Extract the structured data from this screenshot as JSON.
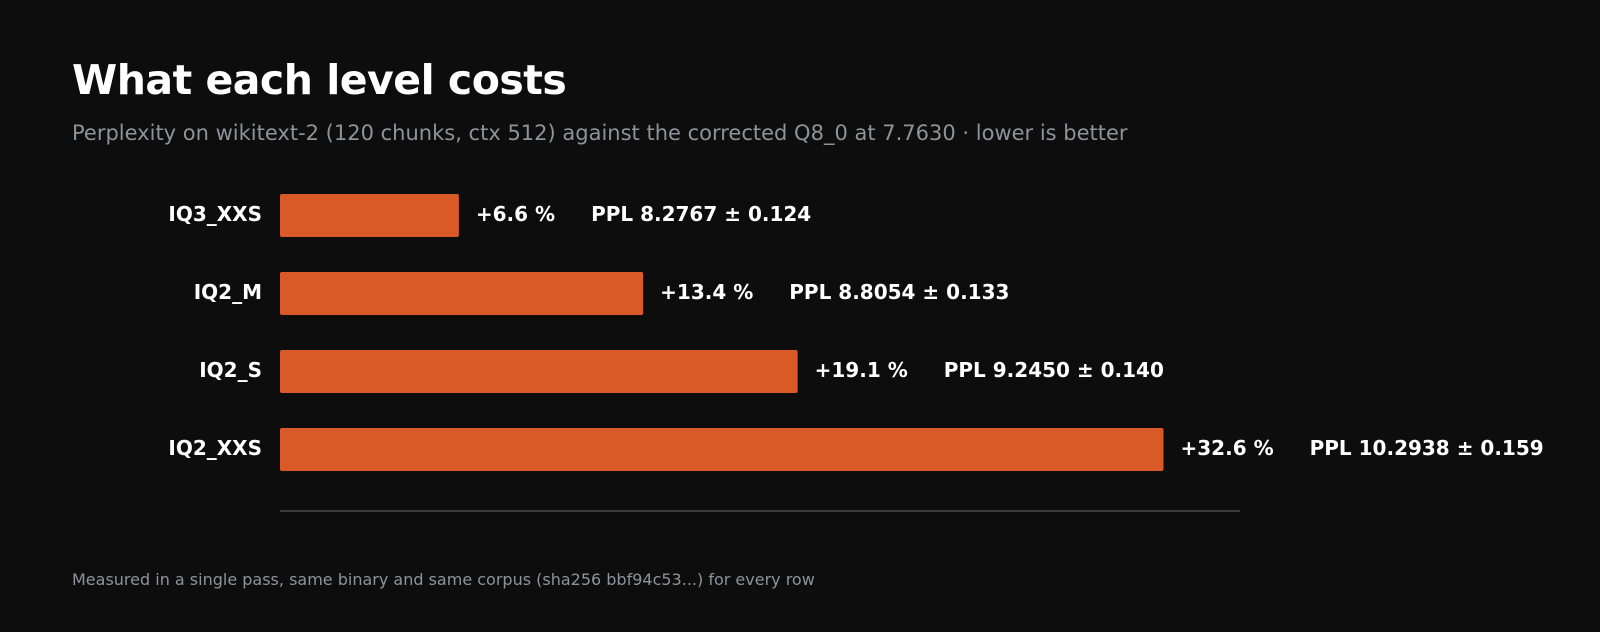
{
  "title": "What each level costs",
  "subtitle": "Perplexity on wikitext-2 (120 chunks, ctx 512) against the corrected Q8_0 at 7.7630  ·  lower is better",
  "footnote": "Measured in a single pass, same binary and same corpus (sha256 bbf94c53...) for every row",
  "colors": {
    "background": "#0d0d0d",
    "bar": "#da5a27",
    "axis": "#3a3a3a",
    "muted_text": "#8b949c"
  },
  "chart_data": {
    "type": "bar",
    "orientation": "horizontal",
    "categories": [
      "IQ3_XXS",
      "IQ2_M",
      "IQ2_S",
      "IQ2_XXS"
    ],
    "values": [
      6.6,
      13.4,
      19.1,
      32.6
    ],
    "pct_labels": [
      "+6.6 %",
      "+13.4 %",
      "+19.1 %",
      "+32.6 %"
    ],
    "ppl_labels": [
      "PPL 8.2767 ± 0.124",
      "PPL 8.8054 ± 0.133",
      "PPL 9.2450 ± 0.140",
      "PPL 10.2938 ± 0.159"
    ],
    "unit": "%",
    "xlim": [
      0,
      34.5
    ],
    "grid": false
  }
}
